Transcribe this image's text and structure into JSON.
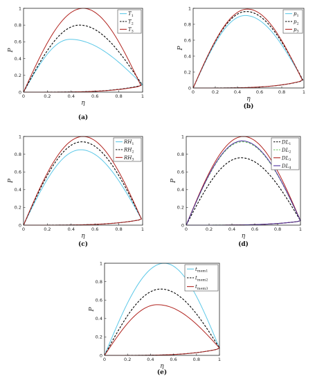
{
  "colors": {
    "cyan": "#5bc8e8",
    "black": "#000000",
    "red": "#b0221d",
    "green": "#67c25a",
    "purple": "#4b2fa0"
  },
  "chart_data": [
    {
      "type": "line",
      "caption": "(a)",
      "xlabel": "η",
      "ylabel": "P",
      "xlim": [
        0,
        1
      ],
      "ylim": [
        0,
        1
      ],
      "xticks": [
        "0",
        "0.2",
        "0.4",
        "0.6",
        "0.8",
        "1"
      ],
      "yticks": [
        "0",
        "0.2",
        "0.4",
        "0.6",
        "0.8",
        "1"
      ],
      "legend": "top-right",
      "series": [
        {
          "name": "T1",
          "color": "#5bc8e8",
          "dash": false,
          "peak_x": 0.39,
          "peak": 0.63,
          "end_x": 1.0,
          "tail": 0.09
        },
        {
          "name": "T2",
          "color": "#000000",
          "dash": true,
          "peak_x": 0.47,
          "peak": 0.8,
          "end_x": 0.995,
          "tail": 0.09
        },
        {
          "name": "T3",
          "color": "#b0221d",
          "dash": false,
          "peak_x": 0.5,
          "peak": 1.0,
          "end_x": 0.985,
          "tail": 0.08
        }
      ]
    },
    {
      "type": "line",
      "caption": "(b)",
      "xlabel": "η",
      "ylabel": "P",
      "xlim": [
        0,
        1
      ],
      "ylim": [
        0,
        1
      ],
      "xticks": [
        "0",
        "0.2",
        "0.4",
        "0.6",
        "0.8",
        "1"
      ],
      "yticks": [
        "0",
        "0.2",
        "0.4",
        "0.6",
        "0.8",
        "1"
      ],
      "legend": "top-right",
      "series": [
        {
          "name": "p1",
          "color": "#5bc8e8",
          "dash": false,
          "peak_x": 0.47,
          "peak": 0.91,
          "end_x": 0.99,
          "tail": 0.1
        },
        {
          "name": "p2",
          "color": "#000000",
          "dash": true,
          "peak_x": 0.48,
          "peak": 0.96,
          "end_x": 0.99,
          "tail": 0.1
        },
        {
          "name": "p3",
          "color": "#b0221d",
          "dash": false,
          "peak_x": 0.49,
          "peak": 0.99,
          "end_x": 0.985,
          "tail": 0.1
        }
      ]
    },
    {
      "type": "line",
      "caption": "(c)",
      "xlabel": "η",
      "ylabel": "P",
      "xlim": [
        0,
        1
      ],
      "ylim": [
        0,
        1
      ],
      "xticks": [
        "0",
        "0.2",
        "0.4",
        "0.6",
        "0.8",
        "1"
      ],
      "yticks": [
        "0",
        "0.2",
        "0.4",
        "0.6",
        "0.8",
        "1"
      ],
      "legend": "top-right",
      "series": [
        {
          "name": "RH1",
          "color": "#5bc8e8",
          "dash": false,
          "peak_x": 0.48,
          "peak": 0.85,
          "end_x": 0.99,
          "tail": 0.07
        },
        {
          "name": "RH2",
          "color": "#000000",
          "dash": true,
          "peak_x": 0.49,
          "peak": 0.94,
          "end_x": 0.99,
          "tail": 0.07
        },
        {
          "name": "RH3",
          "color": "#b0221d",
          "dash": false,
          "peak_x": 0.5,
          "peak": 1.0,
          "end_x": 0.99,
          "tail": 0.07
        }
      ]
    },
    {
      "type": "line",
      "caption": "(d)",
      "xlabel": "η",
      "ylabel": "P",
      "xlim": [
        0,
        1
      ],
      "ylim": [
        0,
        1
      ],
      "xticks": [
        "0",
        "0.2",
        "0.4",
        "0.6",
        "0.8",
        "1"
      ],
      "yticks": [
        "0",
        "0.2",
        "0.4",
        "0.6",
        "0.8",
        "1"
      ],
      "legend": "top-right",
      "series": [
        {
          "name": "DL1",
          "color": "#000000",
          "dash": true,
          "peak_x": 0.48,
          "peak": 0.76,
          "end_x": 1.0,
          "tail": 0.05
        },
        {
          "name": "DL2",
          "color": "#67c25a",
          "dash": true,
          "peak_x": 0.49,
          "peak": 0.94,
          "end_x": 1.0,
          "tail": 0.05
        },
        {
          "name": "DL3",
          "color": "#b0221d",
          "dash": false,
          "peak_x": 0.5,
          "peak": 1.0,
          "end_x": 1.0,
          "tail": 0.05
        },
        {
          "name": "DL4",
          "color": "#4b2fa0",
          "dash": false,
          "peak_x": 0.49,
          "peak": 0.95,
          "end_x": 1.0,
          "tail": 0.05
        }
      ]
    },
    {
      "type": "line",
      "caption": "(e)",
      "xlabel": "η",
      "ylabel": "P",
      "xlim": [
        0,
        1
      ],
      "ylim": [
        0,
        1
      ],
      "xticks": [
        "0",
        "0.2",
        "0.4",
        "0.6",
        "0.8",
        "1"
      ],
      "yticks": [
        "0",
        "0.2",
        "0.4",
        "0.6",
        "0.8",
        "1"
      ],
      "legend": "top-right",
      "series": [
        {
          "name": "tmem1",
          "color": "#5bc8e8",
          "dash": false,
          "peak_x": 0.52,
          "peak": 1.0,
          "end_x": 1.0,
          "tail": 0.08
        },
        {
          "name": "tmem2",
          "color": "#000000",
          "dash": true,
          "peak_x": 0.49,
          "peak": 0.72,
          "end_x": 1.0,
          "tail": 0.08
        },
        {
          "name": "tmem3",
          "color": "#b0221d",
          "dash": false,
          "peak_x": 0.46,
          "peak": 0.55,
          "end_x": 1.0,
          "tail": 0.08
        }
      ]
    }
  ]
}
